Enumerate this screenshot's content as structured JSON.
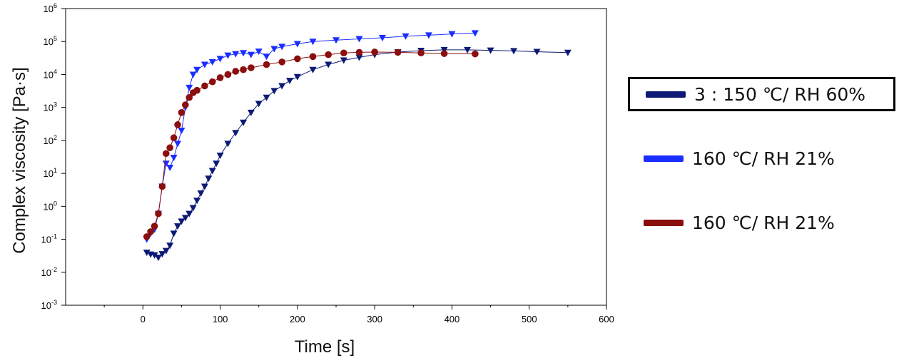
{
  "chart_data": {
    "type": "scatter",
    "xlabel": "Time [s]",
    "ylabel": "Complex viscosity [Pa·s]",
    "xlim": [
      -100,
      600
    ],
    "ylim_log10": [
      -3,
      6
    ],
    "y_scale": "log",
    "x_ticks": [
      0,
      100,
      200,
      300,
      400,
      500,
      600
    ],
    "y_tick_exponents": [
      -3,
      -2,
      -1,
      0,
      1,
      2,
      3,
      4,
      5,
      6
    ],
    "grid": false,
    "legend_position": "right",
    "series": [
      {
        "name": "3 : 150 ℃/ RH 60%",
        "color": "#0d1a75",
        "marker": "triangle-down",
        "legend_boxed": true,
        "x": [
          5,
          10,
          15,
          20,
          25,
          30,
          35,
          40,
          45,
          50,
          55,
          60,
          65,
          70,
          75,
          80,
          85,
          90,
          95,
          100,
          110,
          120,
          130,
          140,
          150,
          160,
          170,
          180,
          190,
          200,
          220,
          240,
          260,
          280,
          300,
          330,
          360,
          390,
          420,
          450,
          480,
          510,
          550
        ],
        "y": [
          0.04,
          0.035,
          0.033,
          0.028,
          0.036,
          0.045,
          0.065,
          0.15,
          0.25,
          0.35,
          0.45,
          0.6,
          0.9,
          1.5,
          2.5,
          4,
          7,
          12,
          20,
          35,
          80,
          170,
          350,
          700,
          1300,
          2000,
          3200,
          4500,
          6500,
          8500,
          14000,
          20000,
          27000,
          33000,
          40000,
          48000,
          53000,
          56000,
          56000,
          54000,
          52000,
          49000,
          46000
        ]
      },
      {
        "name": "160 ℃/ RH 21%",
        "color": "#1a2eff",
        "marker": "triangle-down",
        "legend_boxed": false,
        "x": [
          5,
          10,
          15,
          20,
          25,
          30,
          35,
          40,
          45,
          50,
          55,
          60,
          65,
          70,
          80,
          90,
          100,
          110,
          120,
          130,
          140,
          150,
          160,
          170,
          180,
          200,
          220,
          250,
          280,
          310,
          340,
          370,
          400,
          430
        ],
        "y": [
          0.1,
          0.15,
          0.2,
          0.6,
          4,
          20,
          15,
          30,
          80,
          200,
          1000,
          4000,
          10000,
          14000,
          20000,
          24000,
          30000,
          38000,
          42000,
          45000,
          40000,
          50000,
          35000,
          60000,
          70000,
          85000,
          100000,
          110000,
          120000,
          130000,
          145000,
          155000,
          170000,
          180000
        ]
      },
      {
        "name": "160 ℃/ RH 21%",
        "color": "#8a0e0e",
        "marker": "circle",
        "legend_boxed": false,
        "x": [
          5,
          10,
          15,
          20,
          25,
          30,
          35,
          40,
          45,
          50,
          55,
          60,
          65,
          70,
          80,
          90,
          100,
          110,
          120,
          130,
          140,
          160,
          180,
          200,
          220,
          240,
          260,
          280,
          300,
          330,
          360,
          390,
          430
        ],
        "y": [
          0.12,
          0.17,
          0.25,
          0.6,
          4,
          40,
          60,
          120,
          300,
          700,
          1200,
          2000,
          2800,
          3300,
          4500,
          6000,
          8000,
          10000,
          12500,
          14000,
          16000,
          20000,
          24000,
          30000,
          35000,
          40000,
          45000,
          47000,
          48000,
          47000,
          45000,
          43000,
          42000
        ]
      }
    ]
  }
}
